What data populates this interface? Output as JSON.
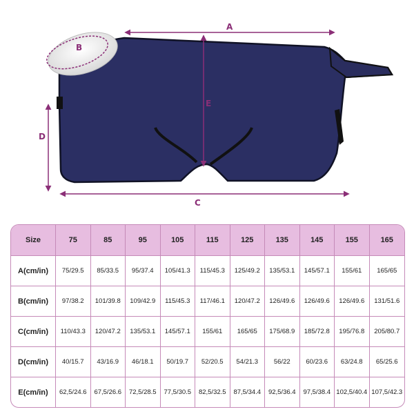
{
  "diagram": {
    "labels": {
      "a": "A",
      "b": "B",
      "c": "C",
      "d": "D",
      "e": "E"
    },
    "colors": {
      "blanket": "#2b2f63",
      "measure": "#8b2f77",
      "trim": "#111111"
    }
  },
  "table": {
    "header_label": "Size",
    "sizes": [
      "75",
      "85",
      "95",
      "105",
      "115",
      "125",
      "135",
      "145",
      "155",
      "165"
    ],
    "rows": [
      {
        "label": "A(cm/in)",
        "values": [
          "75/29.5",
          "85/33.5",
          "95/37.4",
          "105/41.3",
          "115/45.3",
          "125/49.2",
          "135/53.1",
          "145/57.1",
          "155/61",
          "165/65"
        ]
      },
      {
        "label": "B(cm/in)",
        "values": [
          "97/38.2",
          "101/39.8",
          "109/42.9",
          "115/45.3",
          "117/46.1",
          "120/47.2",
          "126/49.6",
          "126/49.6",
          "126/49.6",
          "131/51.6"
        ]
      },
      {
        "label": "C(cm/in)",
        "values": [
          "110/43.3",
          "120/47.2",
          "135/53.1",
          "145/57.1",
          "155/61",
          "165/65",
          "175/68.9",
          "185/72.8",
          "195/76.8",
          "205/80.7"
        ]
      },
      {
        "label": "D(cm/in)",
        "values": [
          "40/15.7",
          "43/16.9",
          "46/18.1",
          "50/19.7",
          "52/20.5",
          "54/21.3",
          "56/22",
          "60/23.6",
          "63/24.8",
          "65/25.6"
        ]
      },
      {
        "label": "E(cm/in)",
        "values": [
          "62,5/24.6",
          "67,5/26.6",
          "72,5/28.5",
          "77,5/30.5",
          "82,5/32.5",
          "87,5/34.4",
          "92,5/36.4",
          "97,5/38.4",
          "102,5/40.4",
          "107,5/42.3"
        ]
      }
    ],
    "colors": {
      "header_bg": "#e7bde0",
      "border": "#c58ab8"
    }
  }
}
